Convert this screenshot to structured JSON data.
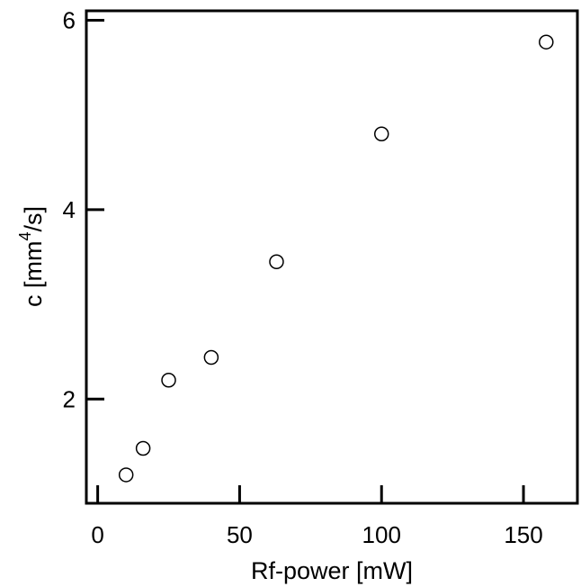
{
  "chart_data": {
    "type": "scatter",
    "title": "",
    "xlabel": "Rf-power [mW]",
    "ylabel": {
      "prefix": "c [mm",
      "superscript": "4",
      "suffix": "/s]"
    },
    "xlim": [
      -4,
      169
    ],
    "ylim": [
      0.9,
      6.1
    ],
    "x_ticks": [
      0,
      50,
      100,
      150
    ],
    "x_tick_labels": [
      "0",
      "50",
      "100",
      "150"
    ],
    "y_ticks": [
      2,
      4,
      6
    ],
    "y_tick_labels": [
      "2",
      "4",
      "6"
    ],
    "grid": false,
    "marker": "open-circle",
    "series": [
      {
        "points": [
          {
            "x": 10,
            "y": 1.2
          },
          {
            "x": 16,
            "y": 1.48
          },
          {
            "x": 25,
            "y": 2.2
          },
          {
            "x": 40,
            "y": 2.44
          },
          {
            "x": 63,
            "y": 3.45
          },
          {
            "x": 100,
            "y": 4.8
          },
          {
            "x": 158,
            "y": 5.77
          }
        ]
      }
    ]
  }
}
